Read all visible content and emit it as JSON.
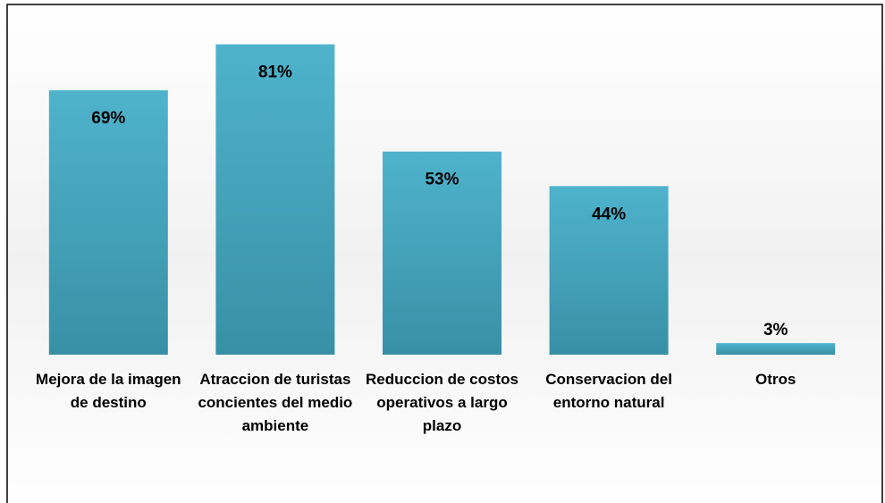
{
  "chart_data": {
    "type": "bar",
    "categories": [
      "Mejora de la imagen de destino",
      "Atraccion de turistas concientes del medio ambiente",
      "Reduccion de costos operativos a largo plazo",
      "Conservacion del entorno natural",
      "Otros"
    ],
    "values": [
      69,
      81,
      53,
      44,
      3
    ],
    "value_labels": [
      "69%",
      "81%",
      "53%",
      "44%",
      "3%"
    ],
    "color": "#4bacc6",
    "ylim": [
      0,
      90
    ]
  }
}
